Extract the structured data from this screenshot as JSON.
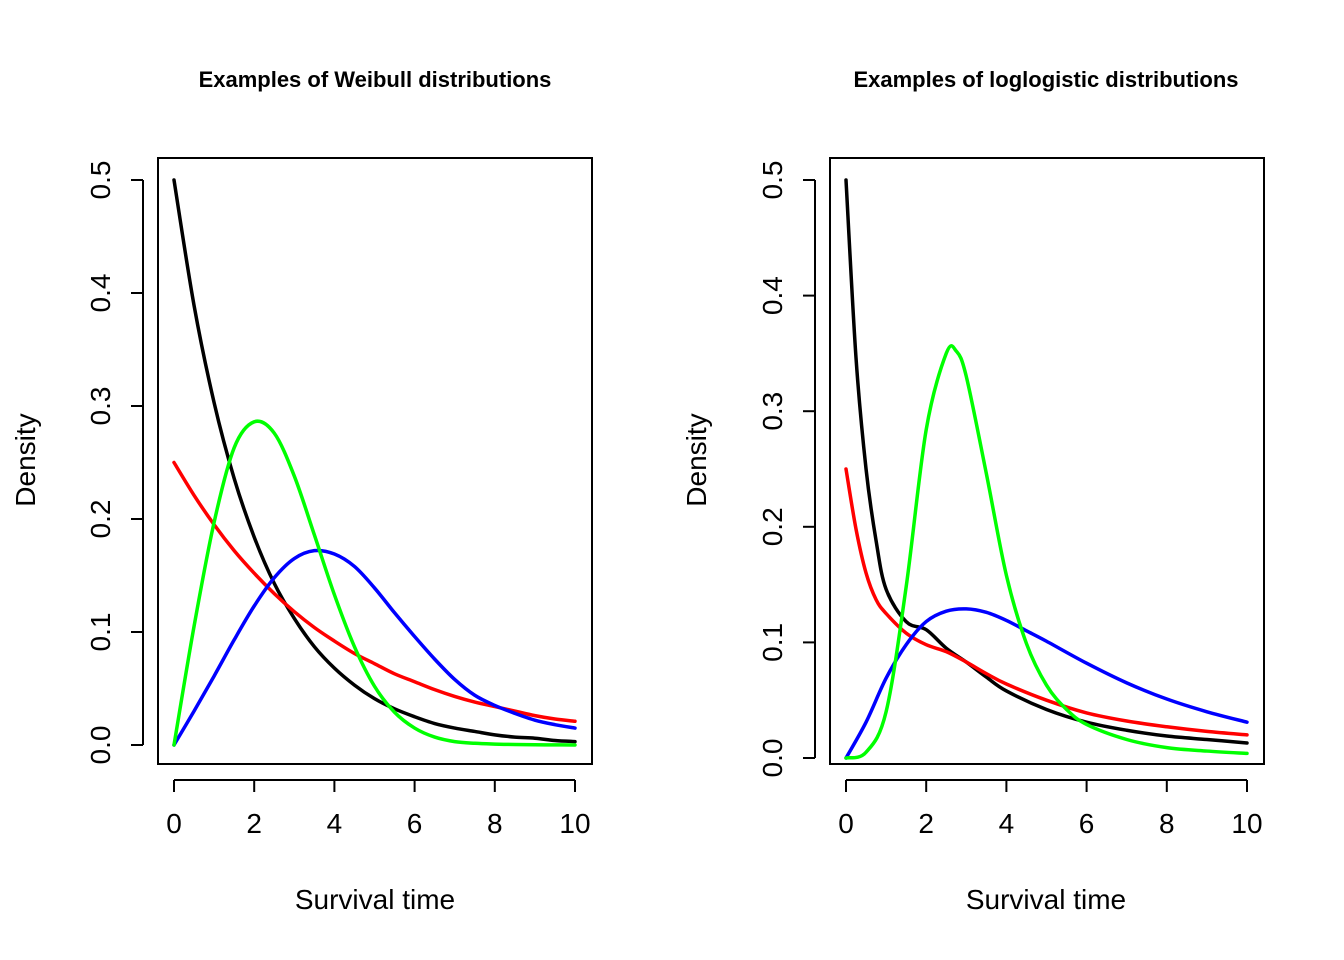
{
  "chart_data": [
    {
      "type": "line",
      "title": "Examples of Weibull distributions",
      "xlabel": "Survival time",
      "ylabel": "Density",
      "xlim": [
        0,
        10
      ],
      "ylim": [
        0,
        0.5
      ],
      "xticks": [
        0,
        2,
        4,
        6,
        8,
        10
      ],
      "xtick_labels": [
        "0",
        "2",
        "4",
        "6",
        "8",
        "10"
      ],
      "yticks": [
        0,
        0.1,
        0.2,
        0.3,
        0.4,
        0.5
      ],
      "ytick_labels": [
        "0.0",
        "0.1",
        "0.2",
        "0.3",
        "0.4",
        "0.5"
      ],
      "grid": false,
      "legend": "none",
      "series": [
        {
          "name": "black",
          "color": "#000000",
          "x": [
            0,
            0.5,
            1,
            1.5,
            2,
            2.5,
            3,
            3.5,
            4,
            4.5,
            5,
            5.5,
            6,
            6.5,
            7,
            7.5,
            8,
            8.5,
            9,
            9.5,
            10
          ],
          "y": [
            0.5,
            0.389,
            0.303,
            0.236,
            0.184,
            0.143,
            0.112,
            0.087,
            0.068,
            0.053,
            0.041,
            0.032,
            0.025,
            0.019,
            0.015,
            0.012,
            0.009,
            0.007,
            0.006,
            0.004,
            0.003
          ]
        },
        {
          "name": "red",
          "color": "#ff0000",
          "x": [
            0,
            0.5,
            1,
            1.5,
            2,
            2.5,
            3,
            3.5,
            4,
            4.5,
            5,
            5.5,
            6,
            6.5,
            7,
            7.5,
            8,
            8.5,
            9,
            9.5,
            10
          ],
          "y": [
            0.25,
            0.221,
            0.195,
            0.172,
            0.152,
            0.134,
            0.118,
            0.104,
            0.092,
            0.081,
            0.072,
            0.063,
            0.056,
            0.049,
            0.043,
            0.038,
            0.034,
            0.03,
            0.026,
            0.023,
            0.021
          ]
        },
        {
          "name": "blue",
          "color": "#0000ff",
          "x": [
            0,
            0.5,
            1,
            1.5,
            2,
            2.5,
            3,
            3.5,
            4,
            4.5,
            5,
            5.5,
            6,
            6.5,
            7,
            7.5,
            8,
            8.5,
            9,
            9.5,
            10
          ],
          "y": [
            0,
            0.03,
            0.061,
            0.093,
            0.123,
            0.148,
            0.165,
            0.172,
            0.169,
            0.158,
            0.139,
            0.117,
            0.096,
            0.076,
            0.058,
            0.044,
            0.035,
            0.028,
            0.022,
            0.018,
            0.015
          ]
        },
        {
          "name": "green",
          "color": "#00ff00",
          "x": [
            0,
            0.5,
            1,
            1.5,
            2,
            2.5,
            3,
            3.5,
            4,
            4.5,
            5,
            5.5,
            6,
            6.5,
            7,
            7.5,
            8,
            8.5,
            9,
            9.5,
            10
          ],
          "y": [
            0,
            0.105,
            0.197,
            0.263,
            0.286,
            0.276,
            0.238,
            0.186,
            0.133,
            0.087,
            0.052,
            0.029,
            0.015,
            0.007,
            0.003,
            0.0015,
            0.0008,
            0.0004,
            0.0002,
            0.0001,
            0
          ]
        }
      ]
    },
    {
      "type": "line",
      "title": "Examples of loglogistic distributions",
      "xlabel": "Survival time",
      "ylabel": "Density",
      "xlim": [
        0,
        10
      ],
      "ylim": [
        0,
        0.5
      ],
      "xticks": [
        0,
        2,
        4,
        6,
        8,
        10
      ],
      "xtick_labels": [
        "0",
        "2",
        "4",
        "6",
        "8",
        "10"
      ],
      "yticks": [
        0,
        0.1,
        0.2,
        0.3,
        0.4,
        0.5
      ],
      "ytick_labels": [
        "0.0",
        "0.1",
        "0.2",
        "0.3",
        "0.4",
        "0.5"
      ],
      "grid": false,
      "legend": "none",
      "series": [
        {
          "name": "black",
          "color": "#000000",
          "x": [
            0,
            0.25,
            0.5,
            0.75,
            1,
            1.5,
            2,
            2.5,
            3,
            3.5,
            4,
            5,
            6,
            7,
            8,
            9,
            10
          ],
          "y": [
            0.5,
            0.346,
            0.25,
            0.188,
            0.146,
            0.118,
            0.111,
            0.095,
            0.083,
            0.07,
            0.058,
            0.042,
            0.031,
            0.024,
            0.019,
            0.016,
            0.013
          ]
        },
        {
          "name": "red",
          "color": "#ff0000",
          "x": [
            0,
            0.25,
            0.5,
            0.75,
            1,
            1.5,
            2,
            2.5,
            3,
            3.5,
            4,
            5,
            6,
            7,
            8,
            9,
            10
          ],
          "y": [
            0.25,
            0.198,
            0.16,
            0.137,
            0.125,
            0.108,
            0.098,
            0.092,
            0.083,
            0.073,
            0.064,
            0.05,
            0.039,
            0.032,
            0.027,
            0.023,
            0.02
          ]
        },
        {
          "name": "blue",
          "color": "#0000ff",
          "x": [
            0,
            0.5,
            1,
            1.5,
            2,
            2.5,
            3,
            3.5,
            4,
            4.5,
            5,
            6,
            7,
            8,
            9,
            10
          ],
          "y": [
            0,
            0.031,
            0.069,
            0.098,
            0.118,
            0.127,
            0.129,
            0.126,
            0.119,
            0.11,
            0.101,
            0.082,
            0.065,
            0.051,
            0.04,
            0.031
          ]
        },
        {
          "name": "green",
          "color": "#00ff00",
          "x": [
            0,
            0.5,
            1,
            1.5,
            2,
            2.5,
            2.75,
            3,
            3.5,
            4,
            4.5,
            5,
            5.5,
            6,
            7,
            8,
            9,
            10
          ],
          "y": [
            0,
            0.005,
            0.04,
            0.148,
            0.284,
            0.35,
            0.352,
            0.33,
            0.246,
            0.158,
            0.099,
            0.063,
            0.042,
            0.029,
            0.016,
            0.009,
            0.006,
            0.004
          ]
        }
      ]
    }
  ]
}
